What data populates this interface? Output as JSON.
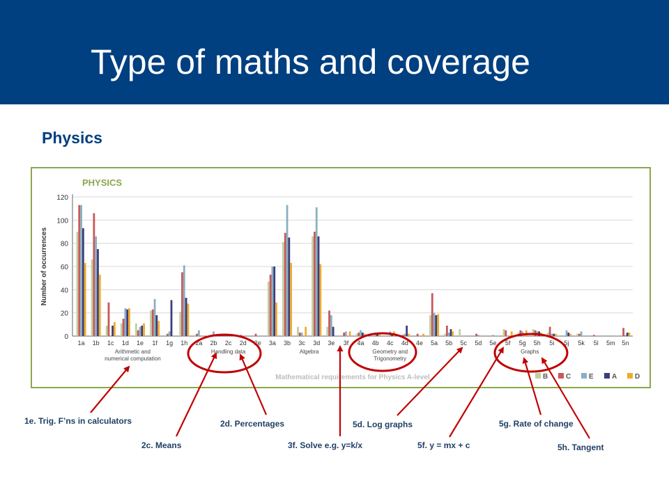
{
  "header": {
    "title": "Type of maths and coverage",
    "background": "#003f80"
  },
  "section": {
    "title": "Physics"
  },
  "chart_data": {
    "type": "bar",
    "title": "PHYSICS",
    "xlabel": "Mathematical requirements for Physics A-level",
    "ylabel": "Number of occurrences",
    "ylim": [
      0,
      120
    ],
    "yticks": [
      "0",
      "20",
      "40",
      "60",
      "80",
      "100",
      "120"
    ],
    "grid": true,
    "legend_position": "bottom-right",
    "categories": [
      "1a",
      "1b",
      "1c",
      "1d",
      "1e",
      "1f",
      "1g",
      "1h",
      "2a",
      "2b",
      "2c",
      "2d",
      "2e",
      "3a",
      "3b",
      "3c",
      "3d",
      "3e",
      "3f",
      "4a",
      "4b",
      "4c",
      "4d",
      "4e",
      "5a",
      "5b",
      "5c",
      "5d",
      "5e",
      "5f",
      "5g",
      "5h",
      "5i",
      "5j",
      "5k",
      "5l",
      "5m",
      "5n"
    ],
    "groups": [
      {
        "label": "Arithmetic and numerical computation",
        "start": 0,
        "end": 7
      },
      {
        "label": "Handling data",
        "start": 8,
        "end": 12
      },
      {
        "label": "Algebra",
        "start": 13,
        "end": 18
      },
      {
        "label": "Geometry and Trigonometry",
        "start": 19,
        "end": 23
      },
      {
        "label": "Graphs",
        "start": 24,
        "end": 37
      }
    ],
    "series": [
      {
        "name": "B",
        "color": "#c2cf9e",
        "values": [
          90,
          66,
          9,
          11,
          11,
          22,
          0,
          21,
          1,
          1,
          0,
          0,
          0,
          47,
          81,
          8,
          86,
          8,
          0,
          2,
          0,
          1,
          1,
          0,
          18,
          2,
          6,
          0,
          0,
          6,
          3,
          6,
          3,
          0,
          2,
          0,
          0,
          1
        ]
      },
      {
        "name": "C",
        "color": "#c8585a",
        "values": [
          113,
          106,
          29,
          15,
          5,
          23,
          2,
          55,
          2,
          0,
          0,
          1,
          2,
          53,
          89,
          3,
          90,
          22,
          3,
          3,
          0,
          0,
          1,
          2,
          37,
          9,
          0,
          2,
          0,
          5,
          5,
          5,
          8,
          0,
          2,
          1,
          0,
          7
        ]
      },
      {
        "name": "E",
        "color": "#8ab0c2",
        "values": [
          113,
          86,
          0,
          24,
          8,
          32,
          4,
          61,
          5,
          4,
          0,
          0,
          0,
          60,
          113,
          3,
          111,
          18,
          4,
          5,
          3,
          4,
          2,
          0,
          20,
          3,
          0,
          1,
          1,
          0,
          4,
          4,
          2,
          5,
          4,
          0,
          0,
          1
        ]
      },
      {
        "name": "A",
        "color": "#3b3e7a",
        "values": [
          93,
          75,
          9,
          23,
          9,
          18,
          31,
          33,
          0,
          0,
          0,
          0,
          0,
          60,
          85,
          0,
          86,
          8,
          0,
          3,
          3,
          2,
          9,
          0,
          18,
          6,
          0,
          0,
          0,
          0,
          0,
          4,
          2,
          3,
          0,
          0,
          0,
          3
        ]
      },
      {
        "name": "D",
        "color": "#f0ab2c",
        "values": [
          63,
          53,
          12,
          24,
          11,
          13,
          0,
          28,
          0,
          0,
          0,
          0,
          0,
          29,
          63,
          8,
          62,
          0,
          4,
          2,
          3,
          4,
          2,
          2,
          19,
          4,
          0,
          0,
          0,
          4,
          5,
          3,
          2,
          2,
          0,
          0,
          0,
          3
        ]
      }
    ]
  },
  "callouts": [
    {
      "text": "1e. Trig. F’ns in calculators"
    },
    {
      "text": "2c. Means"
    },
    {
      "text": "2d. Percentages"
    },
    {
      "text": "3f. Solve e.g. y=k/x"
    },
    {
      "text": "5d. Log graphs"
    },
    {
      "text": "5f. y = mx + c"
    },
    {
      "text": "5g. Rate of change"
    },
    {
      "text": "5h. Tangent"
    }
  ],
  "annotation_color": "#c00000"
}
